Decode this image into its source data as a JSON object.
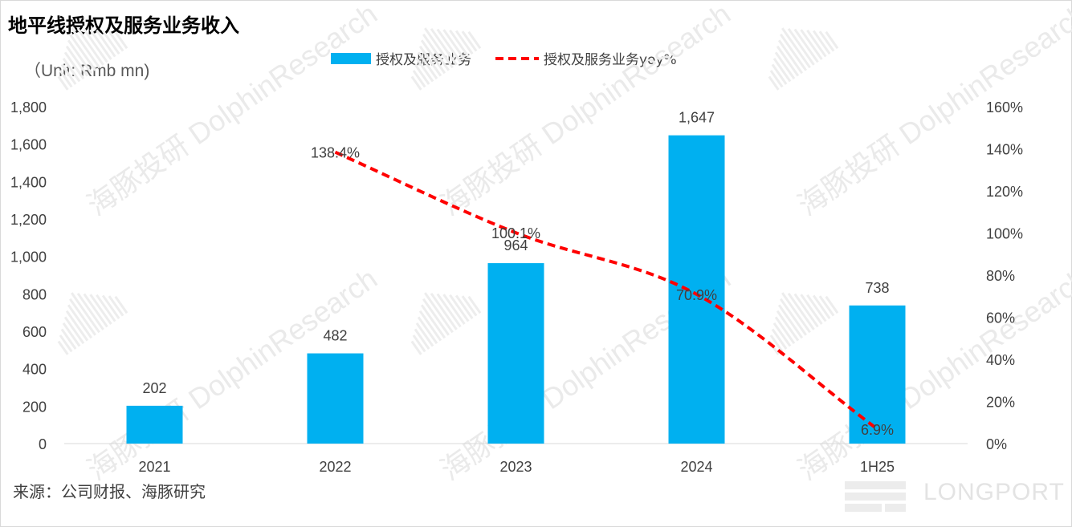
{
  "title": "地平线授权及服务业务收入",
  "unit_label": "（Unit: Rmb mn)",
  "source": "来源：公司财报、海豚研究",
  "watermark_text": "海豚投研 DolphinResearch",
  "watermark_logo": "LONGPORT",
  "colors": {
    "bar": "#00b0f0",
    "line": "#ff0000",
    "axis_text": "#404040",
    "watermark": "#e3e3e3"
  },
  "chart_data": {
    "type": "bar",
    "categories": [
      "2021",
      "2022",
      "2023",
      "2024",
      "1H25"
    ],
    "series": [
      {
        "name": "授权及服务业务",
        "type": "bar",
        "axis": "left",
        "values": [
          202,
          482,
          964,
          1647,
          738
        ],
        "labels": [
          "202",
          "482",
          "964",
          "1,647",
          "738"
        ]
      },
      {
        "name": "授权及服务业务yoy%",
        "type": "line",
        "axis": "right",
        "style": "dashed",
        "values": [
          null,
          138.4,
          100.1,
          70.9,
          6.9
        ],
        "labels": [
          "",
          "138.4%",
          "100.1%",
          "70.9%",
          "6.9%"
        ]
      }
    ],
    "y_left": {
      "min": 0,
      "max": 1800,
      "ticks": [
        "0",
        "200",
        "400",
        "600",
        "800",
        "1,000",
        "1,200",
        "1,400",
        "1,600",
        "1,800"
      ]
    },
    "y_right": {
      "min": 0,
      "max": 160,
      "ticks": [
        "0%",
        "20%",
        "40%",
        "60%",
        "80%",
        "100%",
        "120%",
        "140%",
        "160%"
      ]
    },
    "grid": false,
    "legend_position": "top"
  }
}
